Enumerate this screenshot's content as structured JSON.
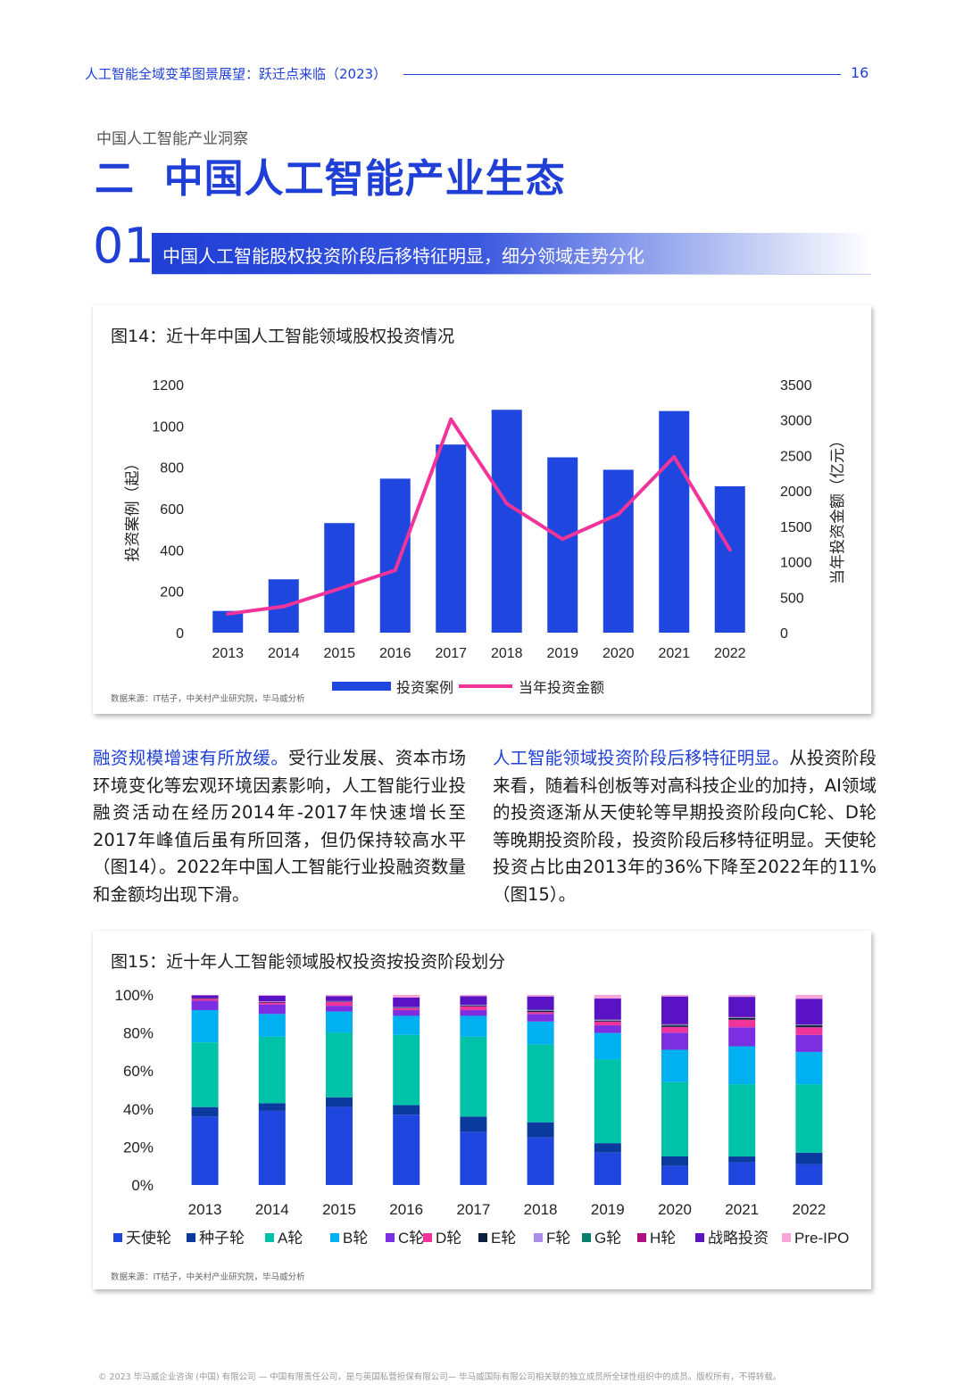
{
  "header": {
    "title": "人工智能全域变革图景展望：跃迁点来临（2023）",
    "page_number": "16"
  },
  "section": {
    "subtitle": "中国人工智能产业洞察",
    "title": "二  中国人工智能产业生态"
  },
  "subsection": {
    "number": "01",
    "title": "中国人工智能股权投资阶段后移特征明显，细分领域走势分化"
  },
  "figure14": {
    "title": "图14：近十年中国人工智能领域股权投资情况",
    "source": "数据来源：IT桔子，中关村产业研究院，毕马威分析"
  },
  "figure15": {
    "title": "图15：近十年人工智能领域股权投资按投资阶段划分",
    "source": "数据来源：IT桔子，中关村产业研究院，毕马威分析"
  },
  "paragraphs": {
    "left_highlight": "融资规模增速有所放缓。",
    "left_body": "受行业发展、资本市场环境变化等宏观环境因素影响，人工智能行业投融资活动在经历2014年-2017年快速增长至2017年峰值后虽有所回落，但仍保持较高水平（图14）。2022年中国人工智能行业投融资数量和金额均出现下滑。",
    "right_highlight": "人工智能领域投资阶段后移特征明显。",
    "right_body": "从投资阶段来看，随着科创板等对高科技企业的加持，AI领域的投资逐渐从天使轮等早期投资阶段向C轮、D轮等晚期投资阶段，投资阶段后移特征明显。天使轮投资占比由2013年的36%下降至2022年的11%（图15）。"
  },
  "footer": {
    "text": "© 2023 毕马威企业咨询 (中国) 有限公司 — 中国有限责任公司，是与英国私营担保有限公司— 毕马威国际有限公司相关联的独立成员所全球性组织中的成员。版权所有，不得转载。"
  },
  "chart_data": [
    {
      "type": "bar",
      "categories": [
        "2013",
        "2014",
        "2015",
        "2016",
        "2017",
        "2018",
        "2019",
        "2020",
        "2021",
        "2022"
      ],
      "series": [
        {
          "name": "投资案例",
          "type": "bar",
          "axis": "left",
          "color": "#1f47e0",
          "values": [
            105,
            258,
            530,
            745,
            910,
            1078,
            848,
            788,
            1072,
            708
          ]
        },
        {
          "name": "当年投资金额",
          "type": "line",
          "axis": "right",
          "color": "#f0349a",
          "values": [
            265,
            370,
            620,
            880,
            3010,
            1820,
            1320,
            1670,
            2480,
            1170
          ]
        }
      ],
      "ylabel_left": "投资案例（起）",
      "ylabel_right": "当年投资金额（亿元）",
      "ylim_left": [
        0,
        1200
      ],
      "ylim_right": [
        0,
        3500
      ],
      "yticks_left": [
        "0",
        "200",
        "400",
        "600",
        "800",
        "1000",
        "1200"
      ],
      "yticks_right": [
        "0",
        "500",
        "1000",
        "1500",
        "2000",
        "2500",
        "3000",
        "3500"
      ],
      "legend_position": "bottom"
    },
    {
      "type": "bar",
      "stacked": true,
      "percent": true,
      "categories": [
        "2013",
        "2014",
        "2015",
        "2016",
        "2017",
        "2018",
        "2019",
        "2020",
        "2021",
        "2022"
      ],
      "yticks": [
        "0%",
        "20%",
        "40%",
        "60%",
        "80%",
        "100%"
      ],
      "ylim": [
        0,
        100
      ],
      "legend_position": "bottom",
      "series": [
        {
          "name": "天使轮",
          "color": "#1f47e0",
          "values": [
            36,
            39,
            41,
            37,
            28,
            25,
            17,
            10,
            12,
            11
          ]
        },
        {
          "name": "种子轮",
          "color": "#0b3a9e",
          "values": [
            5,
            4,
            5,
            5,
            8,
            8,
            5,
            5,
            3,
            6
          ]
        },
        {
          "name": "A轮",
          "color": "#00c2a8",
          "values": [
            34,
            35,
            34,
            37,
            42,
            41,
            44,
            39,
            38,
            36
          ]
        },
        {
          "name": "B轮",
          "color": "#00b0f0",
          "values": [
            17,
            12,
            11,
            10,
            11,
            12,
            14,
            17,
            20,
            17
          ]
        },
        {
          "name": "C轮",
          "color": "#7b2fe0",
          "values": [
            5,
            5,
            3,
            3,
            3,
            4,
            4,
            9,
            10,
            9
          ]
        },
        {
          "name": "D轮",
          "color": "#f0349a",
          "values": [
            1,
            1,
            2,
            1,
            2,
            1,
            2,
            3,
            4,
            4
          ]
        },
        {
          "name": "E轮",
          "color": "#0a1f3f",
          "values": [
            0.3,
            0.3,
            0.3,
            0.3,
            0.5,
            0.7,
            0.5,
            0.8,
            0.8,
            1
          ]
        },
        {
          "name": "F轮",
          "color": "#a98de8",
          "values": [
            0,
            0.3,
            0.2,
            0.3,
            0.3,
            0.3,
            0.3,
            0.3,
            0.3,
            0.2
          ]
        },
        {
          "name": "G轮",
          "color": "#087f6a",
          "values": [
            0,
            0,
            0,
            0,
            0,
            0.2,
            0.2,
            0.2,
            0.2,
            0.2
          ]
        },
        {
          "name": "H轮",
          "color": "#b0107e",
          "values": [
            0,
            0,
            0,
            0,
            0,
            0,
            0.1,
            0.2,
            0.2,
            0.1
          ]
        },
        {
          "name": "战略投资",
          "color": "#5a13c4",
          "values": [
            1.5,
            3,
            2.5,
            5,
            4.5,
            7,
            11,
            14.5,
            10.5,
            13.5
          ]
        },
        {
          "name": "Pre-IPO",
          "color": "#f7a6d7",
          "values": [
            0.2,
            0.4,
            0.7,
            1.4,
            0.7,
            0.8,
            1.9,
            0.8,
            1,
            2
          ]
        }
      ]
    }
  ]
}
